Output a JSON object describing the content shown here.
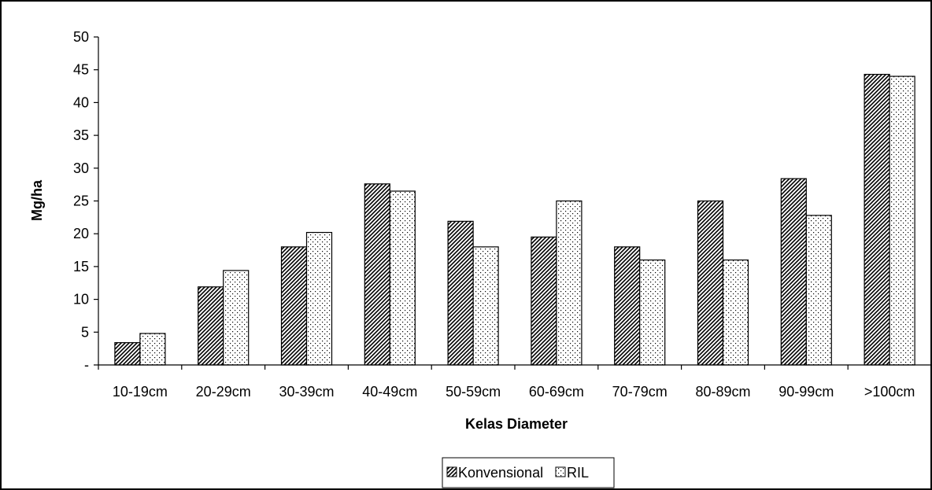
{
  "chart_data": {
    "type": "bar",
    "categories": [
      "10-19cm",
      "20-29cm",
      "30-39cm",
      "40-49cm",
      "50-59cm",
      "60-69cm",
      "70-79cm",
      "80-89cm",
      "90-99cm",
      ">100cm"
    ],
    "series": [
      {
        "name": "Konvensional",
        "pattern": "diagonal-hatch",
        "values": [
          3.4,
          11.9,
          18.0,
          27.6,
          21.9,
          19.5,
          18.0,
          25.0,
          28.4,
          44.3
        ]
      },
      {
        "name": "RIL",
        "pattern": "dots",
        "values": [
          4.8,
          14.4,
          20.2,
          26.5,
          18.0,
          25.0,
          16.0,
          16.0,
          22.8,
          44.0
        ]
      }
    ],
    "xlabel": "Kelas Diameter",
    "ylabel": "Mg/ha",
    "ylim": [
      0,
      50
    ],
    "yticks": [
      "-",
      "5",
      "10",
      "15",
      "20",
      "25",
      "30",
      "35",
      "40",
      "45",
      "50"
    ],
    "grid": false,
    "legend_position": "bottom-center"
  }
}
